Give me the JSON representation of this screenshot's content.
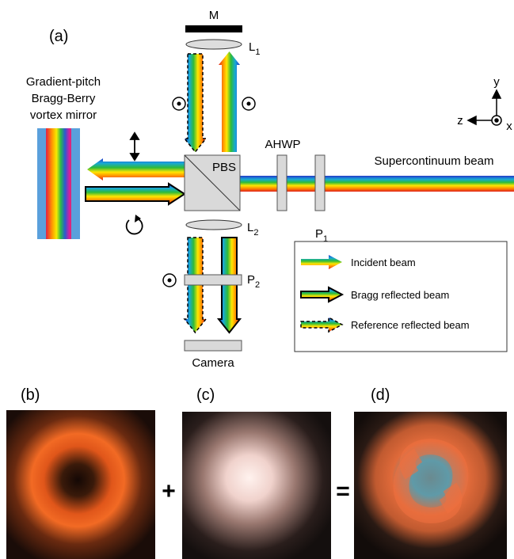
{
  "panel_a": {
    "label": "(a)",
    "mirror_label": [
      "Gradient-pitch",
      "Bragg-Berry",
      "vortex mirror"
    ],
    "components": {
      "M": "M",
      "L1": {
        "base": "L",
        "sub": "1"
      },
      "L2": {
        "base": "L",
        "sub": "2"
      },
      "PBS": "PBS",
      "AHWP": "AHWP",
      "P1": {
        "base": "P",
        "sub": "1"
      },
      "P2": {
        "base": "P",
        "sub": "2"
      },
      "camera": "Camera"
    },
    "beam_label": "Supercontinuum beam",
    "axes": {
      "y": "y",
      "z": "z",
      "x": "x"
    },
    "legend": [
      "Incident beam",
      "Bragg reflected beam",
      "Reference reflected beam"
    ]
  },
  "panels": [
    {
      "label": "(b)"
    },
    {
      "label": "(c)"
    },
    {
      "label": "(d)"
    }
  ],
  "operators": [
    "+",
    "="
  ]
}
